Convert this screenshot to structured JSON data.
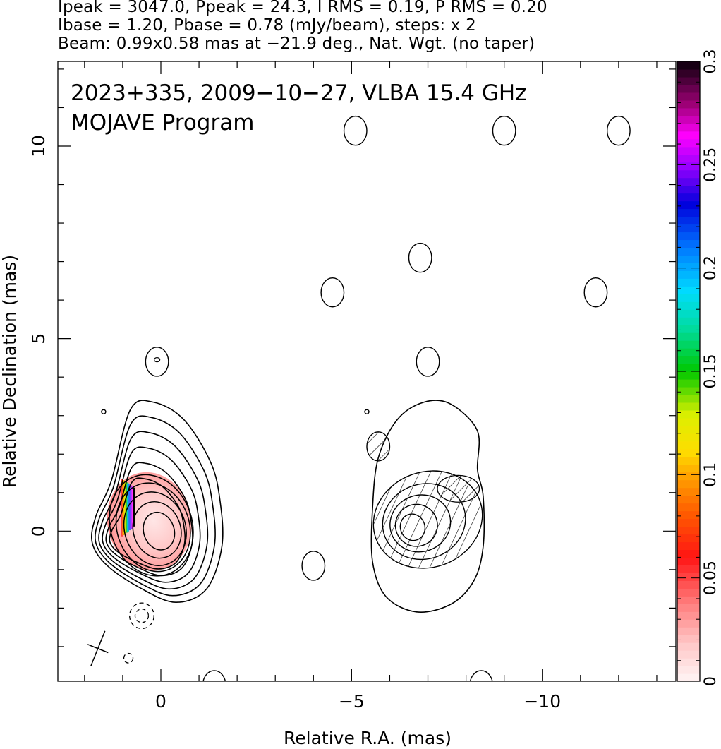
{
  "header": {
    "line1": "Ipeak = 3047.0, Ppeak = 24.3, I RMS = 0.19, P RMS = 0.20",
    "line2": "Ibase = 1.20, Pbase = 0.78 (mJy/beam), steps: x 2",
    "line3": "Beam: 0.99x0.58 mas at −21.9 deg., Nat. Wgt. (no taper)"
  },
  "panel": {
    "title_line1": "2023+335, 2009−10−27, VLBA 15.4 GHz",
    "title_line2": "MOJAVE Program"
  },
  "chart_data": {
    "type": "contour",
    "xlabel": "Relative R.A. (mas)",
    "ylabel": "Relative Declination (mas)",
    "xlim": [
      2.7,
      -13.5
    ],
    "ylim": [
      -3.9,
      12.2
    ],
    "xticks_major": [
      0,
      -5,
      -10
    ],
    "xtick_labels": [
      "0",
      "−5",
      "−10"
    ],
    "xticks_minor": [
      2,
      1,
      -1,
      -2,
      -3,
      -4,
      -6,
      -7,
      -8,
      -9,
      -11,
      -12,
      -13
    ],
    "yticks_major": [
      0,
      5,
      10
    ],
    "ytick_labels": [
      "0",
      "5",
      "10"
    ],
    "yticks_minor": [
      -3,
      -2,
      -1,
      1,
      2,
      3,
      4,
      6,
      7,
      8,
      9,
      11,
      12
    ],
    "colorbar": {
      "range": [
        0,
        0.3
      ],
      "tick_values": [
        0,
        0.05,
        0.1,
        0.15,
        0.2,
        0.25,
        0.3
      ],
      "tick_labels": [
        "0",
        "0.05",
        "0.1",
        "0.15",
        "0.2",
        "0.25",
        "0.3"
      ]
    },
    "left_image": {
      "core": [
        0,
        0
      ],
      "contours": [
        {
          "cx": 0.05,
          "cy": 0.0,
          "rx": 0.4,
          "ry": 0.5
        },
        {
          "cx": 0.1,
          "cy": 0.03,
          "rx": 0.62,
          "ry": 0.75
        },
        {
          "cx": 0.15,
          "cy": 0.06,
          "rx": 0.8,
          "ry": 0.98
        },
        {
          "cx": 0.2,
          "cy": 0.1,
          "rx": 0.95,
          "ry": 1.18
        },
        {
          "cx": 0.25,
          "cy": 0.15,
          "rx": 1.07,
          "ry": 1.35
        }
      ],
      "outer_contour_path": [
        [
          1.4,
          -0.9
        ],
        [
          0.5,
          -1.5
        ],
        [
          -0.4,
          -1.85
        ],
        [
          -1.2,
          -1.5
        ],
        [
          -1.6,
          -0.4
        ],
        [
          -1.55,
          0.8
        ],
        [
          -1.3,
          1.8
        ],
        [
          -0.6,
          2.9
        ],
        [
          0.2,
          3.35
        ],
        [
          0.8,
          3.15
        ],
        [
          1.3,
          1.3
        ],
        [
          1.7,
          0.4
        ],
        [
          1.8,
          -0.3
        ]
      ],
      "fractional_pol_region": {
        "cx": 0.3,
        "cy": 0.25,
        "rx": 1.1,
        "ry": 1.3
      },
      "fractional_pol_edge_value": 0.3
    },
    "right_image": {
      "center": [
        -7.0,
        0.2
      ],
      "outer_contour_path": [
        [
          -8.3,
          1.6
        ],
        [
          -8.3,
          2.6
        ],
        [
          -7.6,
          3.3
        ],
        [
          -6.9,
          3.35
        ],
        [
          -6.2,
          2.9
        ],
        [
          -5.7,
          1.9
        ],
        [
          -5.55,
          0.6
        ],
        [
          -5.55,
          -0.8
        ],
        [
          -5.9,
          -1.7
        ],
        [
          -6.7,
          -2.1
        ],
        [
          -7.6,
          -1.9
        ],
        [
          -8.2,
          -1.3
        ],
        [
          -8.45,
          -0.4
        ],
        [
          -8.45,
          0.9
        ]
      ]
    },
    "isolated_contours": [
      [
        0.1,
        4.4
      ],
      [
        -5.1,
        10.4
      ],
      [
        -9.0,
        10.4
      ],
      [
        -12.0,
        10.4
      ],
      [
        -6.8,
        7.1
      ],
      [
        -4.5,
        6.2
      ],
      [
        -11.4,
        6.2
      ],
      [
        -7.0,
        4.4
      ],
      [
        -5.7,
        2.2
      ],
      [
        -4.0,
        -0.9
      ],
      [
        1.5,
        3.1
      ],
      [
        -5.4,
        3.1
      ],
      [
        -1.4,
        -4.0
      ],
      [
        -8.4,
        -4.0
      ]
    ],
    "negative_contours": [
      [
        0.5,
        -2.2
      ],
      [
        0.85,
        -3.3
      ]
    ],
    "beam": {
      "major_mas": 0.99,
      "minor_mas": 0.58,
      "pa_deg": -21.9,
      "center": [
        1.65,
        -3.05
      ]
    }
  }
}
